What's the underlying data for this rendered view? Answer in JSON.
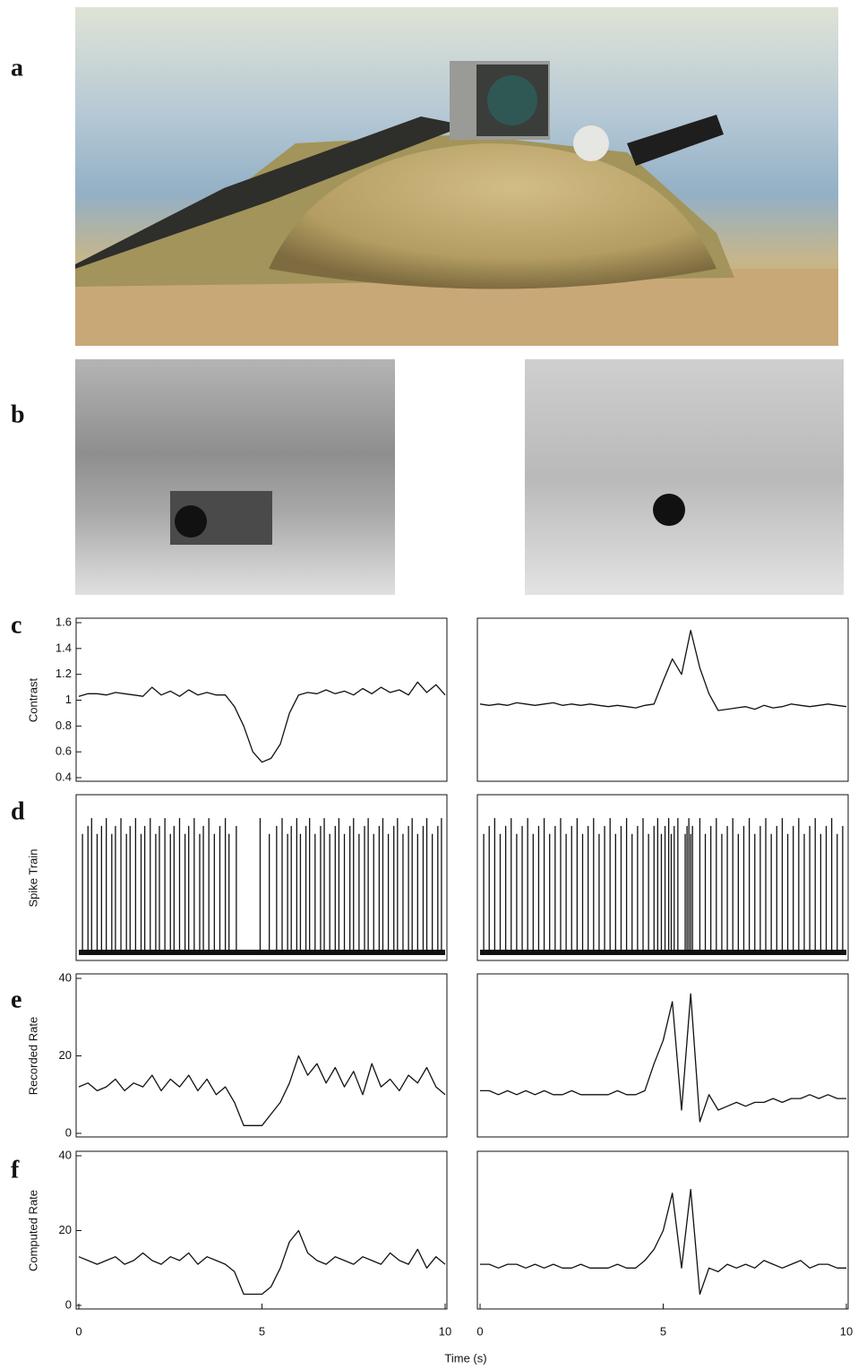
{
  "panels": [
    "a",
    "b",
    "c",
    "d",
    "e",
    "f"
  ],
  "xlabel": "Time (s)",
  "chart_data": [
    {
      "type": "line",
      "ylabel": "Contrast",
      "xlim": [
        0,
        10
      ],
      "ylim": [
        0.4,
        1.6
      ],
      "yticks": [
        0.4,
        0.6,
        0.8,
        1,
        1.2,
        1.4,
        1.6
      ],
      "x": [
        0,
        0.25,
        0.5,
        0.75,
        1,
        1.25,
        1.5,
        1.75,
        2,
        2.25,
        2.5,
        2.75,
        3,
        3.25,
        3.5,
        3.75,
        4,
        4.25,
        4.5,
        4.75,
        5,
        5.25,
        5.5,
        5.75,
        6,
        6.25,
        6.5,
        6.75,
        7,
        7.25,
        7.5,
        7.75,
        8,
        8.25,
        8.5,
        8.75,
        9,
        9.25,
        9.5,
        9.75,
        10
      ],
      "values": [
        1.03,
        1.05,
        1.05,
        1.04,
        1.06,
        1.05,
        1.04,
        1.03,
        1.1,
        1.04,
        1.07,
        1.03,
        1.08,
        1.04,
        1.06,
        1.04,
        1.04,
        0.95,
        0.8,
        0.6,
        0.52,
        0.55,
        0.66,
        0.9,
        1.04,
        1.06,
        1.05,
        1.08,
        1.05,
        1.07,
        1.04,
        1.09,
        1.05,
        1.1,
        1.06,
        1.08,
        1.04,
        1.14,
        1.06,
        1.12,
        1.04
      ]
    },
    {
      "type": "line",
      "xlim": [
        0,
        10
      ],
      "ylim": [
        0.4,
        1.6
      ],
      "x": [
        0,
        0.25,
        0.5,
        0.75,
        1,
        1.25,
        1.5,
        1.75,
        2,
        2.25,
        2.5,
        2.75,
        3,
        3.25,
        3.5,
        3.75,
        4,
        4.25,
        4.5,
        4.75,
        5,
        5.25,
        5.5,
        5.75,
        6,
        6.25,
        6.5,
        6.75,
        7,
        7.25,
        7.5,
        7.75,
        8,
        8.25,
        8.5,
        8.75,
        9,
        9.25,
        9.5,
        9.75,
        10
      ],
      "values": [
        0.97,
        0.96,
        0.97,
        0.96,
        0.98,
        0.97,
        0.96,
        0.97,
        0.98,
        0.96,
        0.97,
        0.96,
        0.97,
        0.96,
        0.95,
        0.96,
        0.95,
        0.94,
        0.96,
        0.97,
        1.15,
        1.32,
        1.2,
        1.54,
        1.25,
        1.05,
        0.92,
        0.93,
        0.94,
        0.95,
        0.93,
        0.96,
        0.94,
        0.95,
        0.97,
        0.96,
        0.95,
        0.96,
        0.97,
        0.96,
        0.95
      ]
    },
    {
      "type": "spike",
      "ylabel": "Spike Train",
      "xlim": [
        0,
        10
      ],
      "x": [
        0.1,
        0.25,
        0.35,
        0.5,
        0.62,
        0.75,
        0.9,
        1.0,
        1.15,
        1.3,
        1.4,
        1.55,
        1.7,
        1.8,
        1.95,
        2.1,
        2.2,
        2.35,
        2.5,
        2.6,
        2.75,
        2.9,
        3.0,
        3.15,
        3.3,
        3.4,
        3.55,
        3.7,
        3.85,
        4.0,
        4.1,
        4.3,
        4.95,
        5.2,
        5.4,
        5.55,
        5.7,
        5.8,
        5.95,
        6.05,
        6.2,
        6.3,
        6.45,
        6.6,
        6.7,
        6.85,
        7.0,
        7.1,
        7.25,
        7.4,
        7.5,
        7.65,
        7.8,
        7.9,
        8.05,
        8.2,
        8.3,
        8.45,
        8.6,
        8.7,
        8.85,
        9.0,
        9.1,
        9.25,
        9.4,
        9.5,
        9.65,
        9.8,
        9.9
      ]
    },
    {
      "type": "spike",
      "xlim": [
        0,
        10
      ],
      "x": [
        0.1,
        0.25,
        0.4,
        0.55,
        0.7,
        0.85,
        1.0,
        1.15,
        1.3,
        1.45,
        1.6,
        1.75,
        1.9,
        2.05,
        2.2,
        2.35,
        2.5,
        2.65,
        2.8,
        2.95,
        3.1,
        3.25,
        3.4,
        3.55,
        3.7,
        3.85,
        4.0,
        4.15,
        4.3,
        4.45,
        4.6,
        4.75,
        4.85,
        4.95,
        5.05,
        5.15,
        5.22,
        5.3,
        5.4,
        5.6,
        5.65,
        5.7,
        5.75,
        5.8,
        6.0,
        6.15,
        6.3,
        6.45,
        6.6,
        6.75,
        6.9,
        7.05,
        7.2,
        7.35,
        7.5,
        7.65,
        7.8,
        7.95,
        8.1,
        8.25,
        8.4,
        8.55,
        8.7,
        8.85,
        9.0,
        9.15,
        9.3,
        9.45,
        9.6,
        9.75,
        9.9
      ]
    },
    {
      "type": "line",
      "ylabel": "Recorded Rate",
      "xlim": [
        0,
        10
      ],
      "ylim": [
        0,
        40
      ],
      "yticks": [
        0,
        20,
        40
      ],
      "x": [
        0,
        0.25,
        0.5,
        0.75,
        1,
        1.25,
        1.5,
        1.75,
        2,
        2.25,
        2.5,
        2.75,
        3,
        3.25,
        3.5,
        3.75,
        4,
        4.25,
        4.5,
        4.75,
        5,
        5.25,
        5.5,
        5.75,
        6,
        6.25,
        6.5,
        6.75,
        7,
        7.25,
        7.5,
        7.75,
        8,
        8.25,
        8.5,
        8.75,
        9,
        9.25,
        9.5,
        9.75,
        10
      ],
      "values": [
        12,
        13,
        11,
        12,
        14,
        11,
        13,
        12,
        15,
        11,
        14,
        12,
        15,
        11,
        14,
        10,
        12,
        8,
        2,
        2,
        2,
        5,
        8,
        13,
        20,
        15,
        18,
        13,
        17,
        12,
        16,
        10,
        18,
        12,
        14,
        11,
        15,
        13,
        17,
        12,
        10
      ]
    },
    {
      "type": "line",
      "xlim": [
        0,
        10
      ],
      "ylim": [
        0,
        40
      ],
      "x": [
        0,
        0.25,
        0.5,
        0.75,
        1,
        1.25,
        1.5,
        1.75,
        2,
        2.25,
        2.5,
        2.75,
        3,
        3.25,
        3.5,
        3.75,
        4,
        4.25,
        4.5,
        4.75,
        5,
        5.25,
        5.5,
        5.75,
        6,
        6.25,
        6.5,
        6.75,
        7,
        7.25,
        7.5,
        7.75,
        8,
        8.25,
        8.5,
        8.75,
        9,
        9.25,
        9.5,
        9.75,
        10
      ],
      "values": [
        11,
        11,
        10,
        11,
        10,
        11,
        10,
        11,
        10,
        10,
        11,
        10,
        10,
        10,
        10,
        11,
        10,
        10,
        11,
        18,
        24,
        34,
        6,
        36,
        3,
        10,
        6,
        7,
        8,
        7,
        8,
        8,
        9,
        8,
        9,
        9,
        10,
        9,
        10,
        9,
        9
      ]
    },
    {
      "type": "line",
      "ylabel": "Computed Rate",
      "xlim": [
        0,
        10
      ],
      "ylim": [
        0,
        40
      ],
      "yticks": [
        0,
        20,
        40
      ],
      "xticks": [
        0,
        5,
        10
      ],
      "x": [
        0,
        0.25,
        0.5,
        0.75,
        1,
        1.25,
        1.5,
        1.75,
        2,
        2.25,
        2.5,
        2.75,
        3,
        3.25,
        3.5,
        3.75,
        4,
        4.25,
        4.5,
        4.75,
        5,
        5.25,
        5.5,
        5.75,
        6,
        6.25,
        6.5,
        6.75,
        7,
        7.25,
        7.5,
        7.75,
        8,
        8.25,
        8.5,
        8.75,
        9,
        9.25,
        9.5,
        9.75,
        10
      ],
      "values": [
        13,
        12,
        11,
        12,
        13,
        11,
        12,
        14,
        12,
        11,
        13,
        12,
        14,
        11,
        13,
        12,
        11,
        9,
        3,
        3,
        3,
        5,
        10,
        17,
        20,
        14,
        12,
        11,
        13,
        12,
        11,
        13,
        12,
        11,
        14,
        12,
        11,
        15,
        10,
        13,
        11
      ]
    },
    {
      "type": "line",
      "xlim": [
        0,
        10
      ],
      "ylim": [
        0,
        40
      ],
      "xticks": [
        0,
        5,
        10
      ],
      "x": [
        0,
        0.25,
        0.5,
        0.75,
        1,
        1.25,
        1.5,
        1.75,
        2,
        2.25,
        2.5,
        2.75,
        3,
        3.25,
        3.5,
        3.75,
        4,
        4.25,
        4.5,
        4.75,
        5,
        5.25,
        5.5,
        5.75,
        6,
        6.25,
        6.5,
        6.75,
        7,
        7.25,
        7.5,
        7.75,
        8,
        8.25,
        8.5,
        8.75,
        9,
        9.25,
        9.5,
        9.75,
        10
      ],
      "values": [
        11,
        11,
        10,
        11,
        11,
        10,
        11,
        10,
        11,
        10,
        10,
        11,
        10,
        10,
        10,
        11,
        10,
        10,
        12,
        15,
        20,
        30,
        10,
        31,
        3,
        10,
        9,
        11,
        10,
        11,
        10,
        12,
        11,
        10,
        11,
        12,
        10,
        11,
        11,
        10,
        10
      ]
    }
  ]
}
